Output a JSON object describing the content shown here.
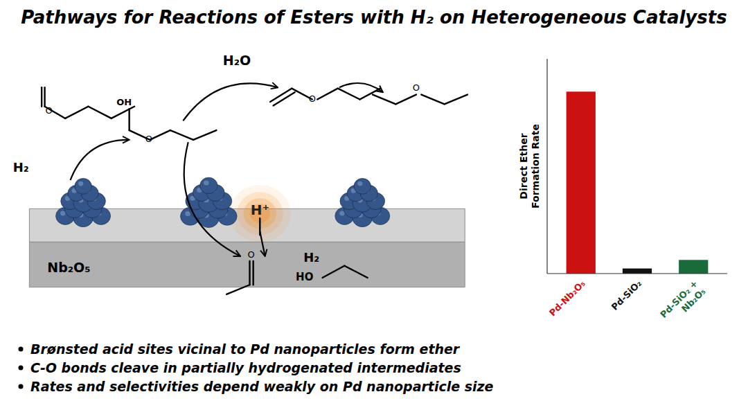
{
  "chart_data": {
    "type": "bar",
    "title": "Pathways for Reactions of Esters with H₂ on Heterogeneous Catalysts",
    "categories": [
      "Pd-Nb₂O₅",
      "Pd-SiO₂",
      "Pd-SiO₂ +\nNb₂O₅"
    ],
    "values": [
      1.0,
      0.028,
      0.075
    ],
    "colors": [
      "#cc1111",
      "#111111",
      "#1a6b3a"
    ],
    "ylabel": "Direct Ether\nFormation Rate",
    "ylim": [
      0,
      1.18
    ],
    "yticks": [],
    "tick_labels": "x",
    "grid": false,
    "annotations": [
      "Brønsted acid sites vicinal to Pd nanoparticles form ether",
      "C-O bonds cleave in partially hydrogenated intermediates",
      "Rates and selectivities depend weakly on Pd nanoparticle size",
      "Nb₂O₅",
      "H₂",
      "H₂",
      "H₂O",
      "H⁺",
      "O",
      "OH",
      "O",
      "O",
      "O",
      "O",
      "HO"
    ]
  }
}
